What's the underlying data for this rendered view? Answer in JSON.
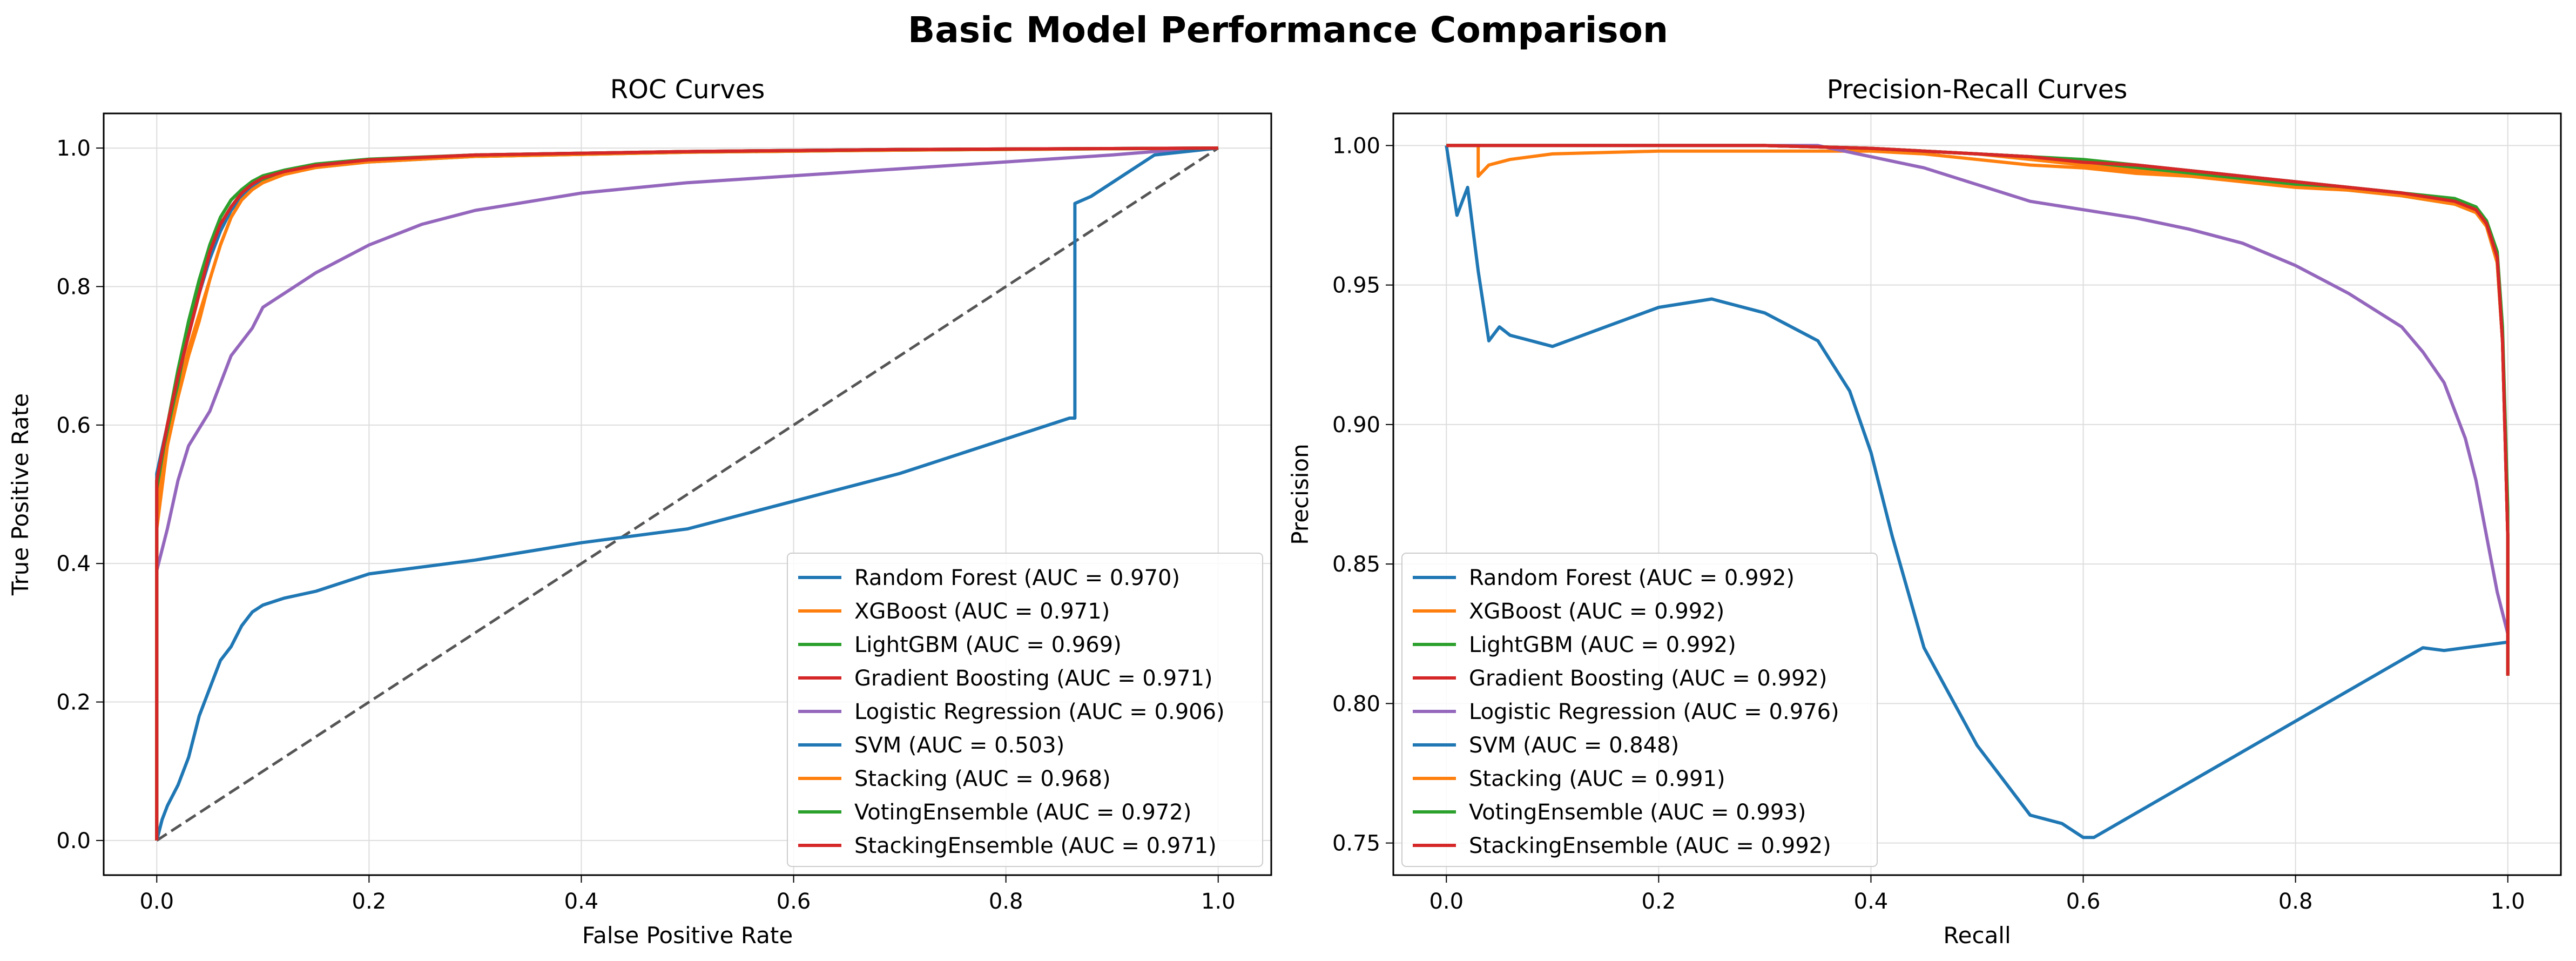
{
  "suptitle": "Basic Model Performance Comparison",
  "colors": {
    "blue": "#1f77b4",
    "orange": "#ff7f0e",
    "green": "#2ca02c",
    "red": "#d62728",
    "purple": "#9467bd",
    "chance": "#555555"
  },
  "chart_data": [
    {
      "type": "line",
      "title": "ROC Curves",
      "xlabel": "False Positive Rate",
      "ylabel": "True Positive Rate",
      "xlim": [
        -0.05,
        1.05
      ],
      "ylim": [
        -0.05,
        1.05
      ],
      "xticks": [
        "0.0",
        "0.2",
        "0.4",
        "0.6",
        "0.8",
        "1.0"
      ],
      "yticks": [
        "0.0",
        "0.2",
        "0.4",
        "0.6",
        "0.8",
        "1.0"
      ],
      "grid": true,
      "legend_position": "lower right",
      "reference_line": {
        "style": "dashed",
        "x": [
          0,
          1
        ],
        "y": [
          0,
          1
        ]
      },
      "series": [
        {
          "name": "Random Forest (AUC = 0.970)",
          "color": "#1f77b4",
          "x": [
            0,
            0,
            0.01,
            0.02,
            0.03,
            0.04,
            0.05,
            0.06,
            0.07,
            0.08,
            0.09,
            0.1,
            0.12,
            0.15,
            0.2,
            0.3,
            0.5,
            0.7,
            1
          ],
          "y": [
            0,
            0.53,
            0.6,
            0.67,
            0.73,
            0.79,
            0.84,
            0.88,
            0.91,
            0.93,
            0.945,
            0.955,
            0.965,
            0.975,
            0.983,
            0.99,
            0.995,
            0.998,
            1
          ]
        },
        {
          "name": "XGBoost (AUC = 0.971)",
          "color": "#ff7f0e",
          "x": [
            0,
            0,
            0.01,
            0.02,
            0.03,
            0.04,
            0.05,
            0.06,
            0.07,
            0.08,
            0.09,
            0.1,
            0.12,
            0.15,
            0.2,
            0.3,
            0.5,
            0.7,
            1
          ],
          "y": [
            0,
            0.45,
            0.57,
            0.65,
            0.71,
            0.76,
            0.81,
            0.86,
            0.9,
            0.925,
            0.94,
            0.95,
            0.962,
            0.972,
            0.981,
            0.988,
            0.994,
            0.997,
            1
          ]
        },
        {
          "name": "LightGBM (AUC = 0.969)",
          "color": "#2ca02c",
          "x": [
            0,
            0,
            0.01,
            0.02,
            0.03,
            0.04,
            0.05,
            0.06,
            0.07,
            0.08,
            0.09,
            0.1,
            0.12,
            0.15,
            0.2,
            0.3,
            0.5,
            0.7,
            1
          ],
          "y": [
            0,
            0.5,
            0.58,
            0.66,
            0.74,
            0.8,
            0.86,
            0.9,
            0.925,
            0.94,
            0.95,
            0.955,
            0.963,
            0.972,
            0.98,
            0.988,
            0.994,
            0.997,
            1
          ]
        },
        {
          "name": "Gradient Boosting (AUC = 0.971)",
          "color": "#d62728",
          "x": [
            0,
            0,
            0.01,
            0.02,
            0.03,
            0.04,
            0.05,
            0.06,
            0.07,
            0.08,
            0.09,
            0.1,
            0.12,
            0.15,
            0.2,
            0.3,
            0.5,
            0.7,
            1
          ],
          "y": [
            0,
            0.52,
            0.6,
            0.67,
            0.73,
            0.79,
            0.85,
            0.89,
            0.915,
            0.935,
            0.948,
            0.957,
            0.966,
            0.975,
            0.983,
            0.99,
            0.995,
            0.998,
            1
          ]
        },
        {
          "name": "Logistic Regression (AUC = 0.906)",
          "color": "#9467bd",
          "x": [
            0,
            0,
            0.01,
            0.02,
            0.03,
            0.05,
            0.07,
            0.09,
            0.1,
            0.13,
            0.15,
            0.2,
            0.25,
            0.3,
            0.4,
            0.5,
            0.6,
            0.7,
            0.8,
            0.9,
            0.94,
            1
          ],
          "y": [
            0,
            0.39,
            0.45,
            0.52,
            0.57,
            0.62,
            0.7,
            0.74,
            0.77,
            0.8,
            0.82,
            0.86,
            0.89,
            0.91,
            0.935,
            0.95,
            0.96,
            0.97,
            0.98,
            0.99,
            0.995,
            1
          ]
        },
        {
          "name": "SVM (AUC = 0.503)",
          "color": "#1f77b4",
          "x": [
            0,
            0.005,
            0.01,
            0.02,
            0.03,
            0.04,
            0.05,
            0.06,
            0.07,
            0.08,
            0.09,
            0.1,
            0.12,
            0.15,
            0.2,
            0.3,
            0.4,
            0.5,
            0.6,
            0.7,
            0.8,
            0.86,
            0.865,
            0.865,
            0.88,
            0.9,
            0.92,
            0.94,
            1
          ],
          "y": [
            0,
            0.03,
            0.05,
            0.08,
            0.12,
            0.18,
            0.22,
            0.26,
            0.28,
            0.31,
            0.33,
            0.34,
            0.35,
            0.36,
            0.385,
            0.405,
            0.43,
            0.45,
            0.49,
            0.53,
            0.58,
            0.61,
            0.61,
            0.92,
            0.93,
            0.95,
            0.97,
            0.99,
            1
          ]
        },
        {
          "name": "Stacking (AUC = 0.968)",
          "color": "#ff7f0e",
          "x": [
            0,
            0,
            0.01,
            0.02,
            0.03,
            0.04,
            0.05,
            0.06,
            0.07,
            0.08,
            0.09,
            0.1,
            0.12,
            0.15,
            0.2,
            0.3,
            0.5,
            0.7,
            1
          ],
          "y": [
            0,
            0.48,
            0.57,
            0.64,
            0.7,
            0.75,
            0.81,
            0.86,
            0.9,
            0.925,
            0.94,
            0.95,
            0.962,
            0.972,
            0.98,
            0.988,
            0.994,
            0.997,
            1
          ]
        },
        {
          "name": "VotingEnsemble (AUC = 0.972)",
          "color": "#2ca02c",
          "x": [
            0,
            0,
            0.01,
            0.02,
            0.03,
            0.04,
            0.05,
            0.06,
            0.07,
            0.08,
            0.09,
            0.1,
            0.12,
            0.15,
            0.2,
            0.3,
            0.5,
            0.7,
            1
          ],
          "y": [
            0,
            0.52,
            0.6,
            0.68,
            0.75,
            0.81,
            0.86,
            0.9,
            0.925,
            0.94,
            0.952,
            0.96,
            0.968,
            0.977,
            0.984,
            0.99,
            0.995,
            0.998,
            1
          ]
        },
        {
          "name": "StackingEnsemble (AUC = 0.971)",
          "color": "#d62728",
          "x": [
            0,
            0,
            0.01,
            0.02,
            0.03,
            0.04,
            0.05,
            0.06,
            0.07,
            0.08,
            0.09,
            0.1,
            0.12,
            0.15,
            0.2,
            0.3,
            0.5,
            0.7,
            1
          ],
          "y": [
            0,
            0.52,
            0.6,
            0.67,
            0.73,
            0.79,
            0.85,
            0.89,
            0.915,
            0.935,
            0.948,
            0.957,
            0.966,
            0.975,
            0.983,
            0.99,
            0.995,
            0.998,
            1
          ]
        }
      ]
    },
    {
      "type": "line",
      "title": "Precision-Recall Curves",
      "xlabel": "Recall",
      "ylabel": "Precision",
      "xlim": [
        -0.05,
        1.05
      ],
      "ylim": [
        0.7385,
        1.0115
      ],
      "xticks": [
        "0.0",
        "0.2",
        "0.4",
        "0.6",
        "0.8",
        "1.0"
      ],
      "yticks": [
        "0.75",
        "0.80",
        "0.85",
        "0.90",
        "0.95",
        "1.00"
      ],
      "grid": true,
      "legend_position": "lower left",
      "series": [
        {
          "name": "Random Forest (AUC = 0.992)",
          "color": "#1f77b4",
          "x": [
            0,
            0.1,
            0.2,
            0.3,
            0.4,
            0.45,
            0.5,
            0.55,
            0.6,
            0.65,
            0.7,
            0.75,
            0.8,
            0.85,
            0.9,
            0.95,
            0.97,
            0.98,
            0.99,
            0.995,
            1,
            1
          ],
          "y": [
            1,
            1,
            1,
            1,
            0.999,
            0.998,
            0.997,
            0.996,
            0.994,
            0.993,
            0.991,
            0.989,
            0.987,
            0.985,
            0.983,
            0.98,
            0.977,
            0.972,
            0.96,
            0.93,
            0.86,
            0.81
          ]
        },
        {
          "name": "XGBoost (AUC = 0.992)",
          "color": "#ff7f0e",
          "x": [
            0,
            0.03,
            0.03,
            0.04,
            0.06,
            0.1,
            0.2,
            0.3,
            0.4,
            0.45,
            0.5,
            0.55,
            0.6,
            0.65,
            0.7,
            0.75,
            0.8,
            0.85,
            0.9,
            0.95,
            0.97,
            0.98,
            0.99,
            0.995,
            1,
            1
          ],
          "y": [
            1,
            1,
            0.989,
            0.993,
            0.995,
            0.997,
            0.998,
            0.998,
            0.998,
            0.997,
            0.995,
            0.993,
            0.992,
            0.99,
            0.989,
            0.988,
            0.986,
            0.985,
            0.983,
            0.98,
            0.977,
            0.972,
            0.96,
            0.93,
            0.86,
            0.81
          ]
        },
        {
          "name": "LightGBM (AUC = 0.992)",
          "color": "#2ca02c",
          "x": [
            0,
            0.1,
            0.2,
            0.3,
            0.4,
            0.45,
            0.5,
            0.55,
            0.6,
            0.65,
            0.7,
            0.75,
            0.8,
            0.85,
            0.9,
            0.95,
            0.97,
            0.98,
            0.99,
            0.995,
            1,
            1
          ],
          "y": [
            1,
            1,
            1,
            1,
            0.999,
            0.998,
            0.997,
            0.996,
            0.994,
            0.992,
            0.99,
            0.988,
            0.986,
            0.984,
            0.982,
            0.979,
            0.976,
            0.971,
            0.958,
            0.93,
            0.86,
            0.81
          ]
        },
        {
          "name": "Gradient Boosting (AUC = 0.992)",
          "color": "#d62728",
          "x": [
            0,
            0.1,
            0.2,
            0.3,
            0.4,
            0.45,
            0.5,
            0.55,
            0.6,
            0.65,
            0.7,
            0.75,
            0.8,
            0.85,
            0.9,
            0.95,
            0.97,
            0.98,
            0.99,
            0.995,
            1,
            1
          ],
          "y": [
            1,
            1,
            1,
            1,
            0.999,
            0.998,
            0.997,
            0.996,
            0.994,
            0.993,
            0.991,
            0.989,
            0.987,
            0.985,
            0.983,
            0.98,
            0.977,
            0.972,
            0.96,
            0.93,
            0.86,
            0.81
          ]
        },
        {
          "name": "Logistic Regression (AUC = 0.976)",
          "color": "#9467bd",
          "x": [
            0,
            0.2,
            0.35,
            0.4,
            0.45,
            0.5,
            0.55,
            0.6,
            0.65,
            0.7,
            0.75,
            0.8,
            0.85,
            0.9,
            0.92,
            0.94,
            0.96,
            0.97,
            0.98,
            0.99,
            1,
            1
          ],
          "y": [
            1,
            1,
            1,
            0.996,
            0.992,
            0.986,
            0.98,
            0.977,
            0.974,
            0.97,
            0.965,
            0.957,
            0.947,
            0.935,
            0.926,
            0.915,
            0.895,
            0.88,
            0.86,
            0.84,
            0.825,
            0.82
          ]
        },
        {
          "name": "SVM (AUC = 0.848)",
          "color": "#1f77b4",
          "x": [
            0,
            0.01,
            0.02,
            0.03,
            0.04,
            0.05,
            0.06,
            0.08,
            0.1,
            0.15,
            0.2,
            0.25,
            0.3,
            0.35,
            0.38,
            0.4,
            0.42,
            0.45,
            0.5,
            0.55,
            0.58,
            0.6,
            0.61,
            0.92,
            0.94,
            1
          ],
          "y": [
            1,
            0.975,
            0.985,
            0.955,
            0.93,
            0.935,
            0.932,
            0.93,
            0.928,
            0.935,
            0.942,
            0.945,
            0.94,
            0.93,
            0.912,
            0.89,
            0.86,
            0.82,
            0.785,
            0.76,
            0.757,
            0.752,
            0.752,
            0.82,
            0.819,
            0.822
          ]
        },
        {
          "name": "Stacking (AUC = 0.991)",
          "color": "#ff7f0e",
          "x": [
            0,
            0.1,
            0.2,
            0.3,
            0.4,
            0.45,
            0.5,
            0.55,
            0.6,
            0.65,
            0.7,
            0.75,
            0.8,
            0.85,
            0.9,
            0.95,
            0.97,
            0.98,
            0.99,
            0.995,
            1,
            1
          ],
          "y": [
            1,
            1,
            1,
            1,
            0.999,
            0.998,
            0.997,
            0.995,
            0.993,
            0.991,
            0.989,
            0.987,
            0.985,
            0.984,
            0.982,
            0.979,
            0.976,
            0.971,
            0.958,
            0.93,
            0.86,
            0.81
          ]
        },
        {
          "name": "VotingEnsemble (AUC = 0.993)",
          "color": "#2ca02c",
          "x": [
            0,
            0.1,
            0.2,
            0.3,
            0.4,
            0.45,
            0.5,
            0.55,
            0.6,
            0.65,
            0.7,
            0.75,
            0.8,
            0.85,
            0.9,
            0.95,
            0.97,
            0.98,
            0.99,
            0.995,
            1,
            1
          ],
          "y": [
            1,
            1,
            1,
            1,
            0.999,
            0.998,
            0.997,
            0.996,
            0.995,
            0.993,
            0.991,
            0.989,
            0.987,
            0.985,
            0.983,
            0.981,
            0.978,
            0.973,
            0.962,
            0.935,
            0.87,
            0.81
          ]
        },
        {
          "name": "StackingEnsemble (AUC = 0.992)",
          "color": "#d62728",
          "x": [
            0,
            0.1,
            0.2,
            0.3,
            0.4,
            0.45,
            0.5,
            0.55,
            0.6,
            0.65,
            0.7,
            0.75,
            0.8,
            0.85,
            0.9,
            0.95,
            0.97,
            0.98,
            0.99,
            0.995,
            1,
            1
          ],
          "y": [
            1,
            1,
            1,
            1,
            0.999,
            0.998,
            0.997,
            0.996,
            0.994,
            0.993,
            0.991,
            0.989,
            0.987,
            0.985,
            0.983,
            0.98,
            0.977,
            0.972,
            0.96,
            0.93,
            0.86,
            0.81
          ]
        }
      ]
    }
  ]
}
